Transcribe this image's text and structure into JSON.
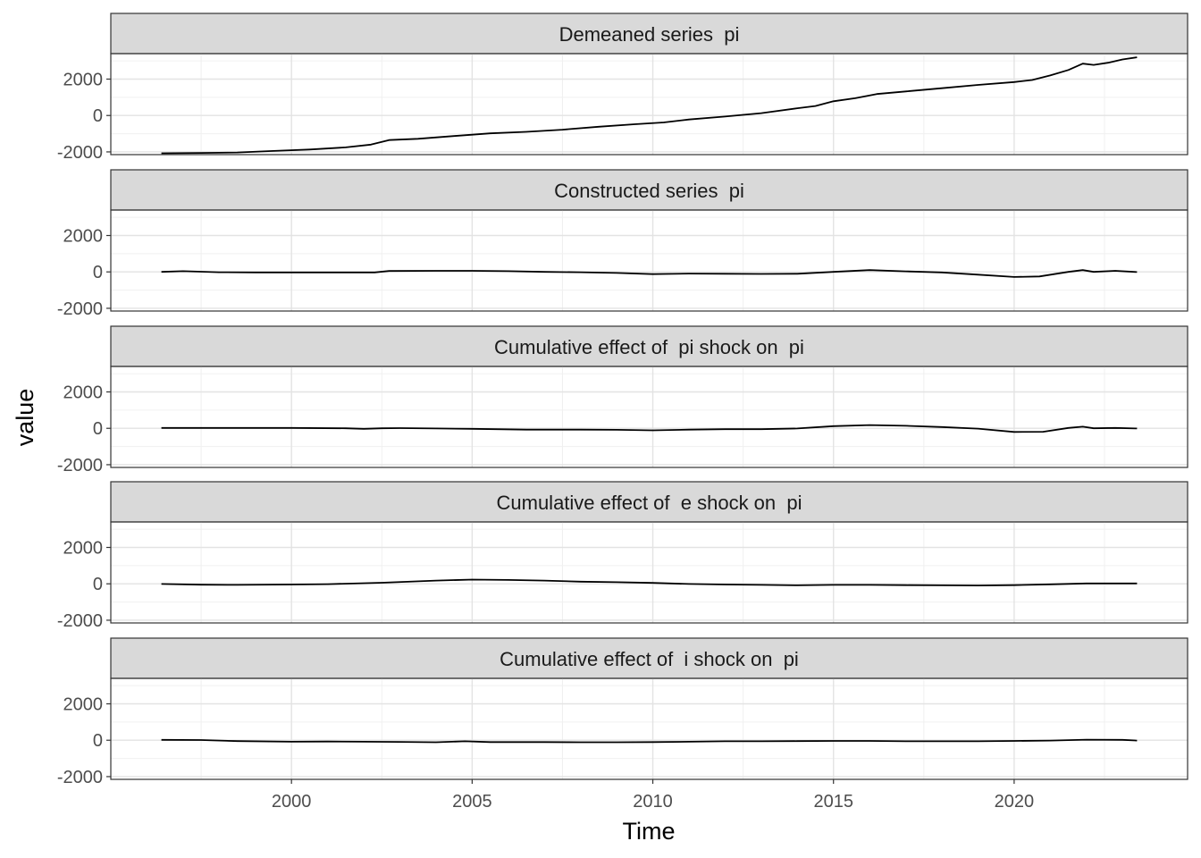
{
  "chart_data": {
    "type": "line",
    "layout": "faceted-vertical",
    "xlabel": "Time",
    "ylabel": "value",
    "xlim": [
      1995.0,
      2024.8
    ],
    "ylim": [
      -2150,
      3400
    ],
    "x_ticks": [
      2000,
      2005,
      2010,
      2015,
      2020
    ],
    "x_tick_labels": [
      "2000",
      "2005",
      "2010",
      "2015",
      "2020"
    ],
    "y_ticks": [
      -2000,
      0,
      2000
    ],
    "y_tick_labels": [
      "-2000",
      "0",
      "2000"
    ],
    "grid": true,
    "line_color": "#000000",
    "panels": [
      {
        "title": "Demeaned series  pi",
        "points": [
          [
            1996.4,
            -2075
          ],
          [
            1997.5,
            -2055
          ],
          [
            1998.5,
            -2030
          ],
          [
            1999.5,
            -1950
          ],
          [
            2000.5,
            -1870
          ],
          [
            2001.5,
            -1750
          ],
          [
            2002.2,
            -1600
          ],
          [
            2002.7,
            -1350
          ],
          [
            2003.5,
            -1280
          ],
          [
            2004.5,
            -1130
          ],
          [
            2005.5,
            -980
          ],
          [
            2006.5,
            -900
          ],
          [
            2007.5,
            -780
          ],
          [
            2008.5,
            -620
          ],
          [
            2009.5,
            -480
          ],
          [
            2010.3,
            -380
          ],
          [
            2011.0,
            -220
          ],
          [
            2012.0,
            -60
          ],
          [
            2013.0,
            130
          ],
          [
            2014.0,
            400
          ],
          [
            2014.5,
            520
          ],
          [
            2015.0,
            780
          ],
          [
            2015.6,
            950
          ],
          [
            2016.2,
            1180
          ],
          [
            2017.0,
            1320
          ],
          [
            2018.0,
            1500
          ],
          [
            2019.0,
            1680
          ],
          [
            2020.0,
            1840
          ],
          [
            2020.5,
            1950
          ],
          [
            2021.0,
            2200
          ],
          [
            2021.5,
            2500
          ],
          [
            2021.9,
            2850
          ],
          [
            2022.2,
            2780
          ],
          [
            2022.6,
            2900
          ],
          [
            2023.0,
            3080
          ],
          [
            2023.4,
            3200
          ]
        ]
      },
      {
        "title": "Constructed series  pi",
        "points": [
          [
            1996.4,
            0
          ],
          [
            1997.0,
            40
          ],
          [
            1998.0,
            -20
          ],
          [
            1999.0,
            -30
          ],
          [
            2000.0,
            -30
          ],
          [
            2001.0,
            -30
          ],
          [
            2002.3,
            -30
          ],
          [
            2002.7,
            50
          ],
          [
            2004.0,
            60
          ],
          [
            2005.0,
            60
          ],
          [
            2006.0,
            40
          ],
          [
            2007.0,
            0
          ],
          [
            2008.0,
            -20
          ],
          [
            2009.0,
            -60
          ],
          [
            2010.0,
            -120
          ],
          [
            2011.0,
            -90
          ],
          [
            2012.0,
            -100
          ],
          [
            2013.0,
            -110
          ],
          [
            2014.0,
            -100
          ],
          [
            2015.0,
            0
          ],
          [
            2016.0,
            100
          ],
          [
            2017.0,
            30
          ],
          [
            2018.0,
            -30
          ],
          [
            2019.0,
            -150
          ],
          [
            2020.0,
            -280
          ],
          [
            2020.7,
            -250
          ],
          [
            2021.5,
            0
          ],
          [
            2021.9,
            100
          ],
          [
            2022.2,
            0
          ],
          [
            2022.8,
            60
          ],
          [
            2023.4,
            -10
          ]
        ]
      },
      {
        "title": "Cumulative effect of  pi shock on  pi",
        "points": [
          [
            1996.4,
            20
          ],
          [
            1998.0,
            20
          ],
          [
            2000.0,
            20
          ],
          [
            2001.5,
            0
          ],
          [
            2002.0,
            -30
          ],
          [
            2002.5,
            0
          ],
          [
            2003.0,
            10
          ],
          [
            2004.0,
            -10
          ],
          [
            2005.0,
            -30
          ],
          [
            2006.5,
            -70
          ],
          [
            2008.0,
            -70
          ],
          [
            2009.0,
            -80
          ],
          [
            2010.0,
            -110
          ],
          [
            2011.0,
            -70
          ],
          [
            2012.0,
            -50
          ],
          [
            2013.0,
            -50
          ],
          [
            2014.0,
            -10
          ],
          [
            2015.0,
            120
          ],
          [
            2016.0,
            180
          ],
          [
            2017.0,
            140
          ],
          [
            2018.0,
            70
          ],
          [
            2019.0,
            -20
          ],
          [
            2020.0,
            -200
          ],
          [
            2020.8,
            -190
          ],
          [
            2021.5,
            20
          ],
          [
            2021.9,
            90
          ],
          [
            2022.2,
            0
          ],
          [
            2022.8,
            20
          ],
          [
            2023.4,
            -10
          ]
        ]
      },
      {
        "title": "Cumulative effect of  e shock on  pi",
        "points": [
          [
            1996.4,
            -10
          ],
          [
            1997.5,
            -50
          ],
          [
            1998.5,
            -60
          ],
          [
            2000.0,
            -40
          ],
          [
            2001.0,
            -20
          ],
          [
            2002.5,
            60
          ],
          [
            2004.0,
            180
          ],
          [
            2005.0,
            230
          ],
          [
            2006.0,
            210
          ],
          [
            2007.0,
            180
          ],
          [
            2008.0,
            120
          ],
          [
            2009.0,
            90
          ],
          [
            2010.0,
            50
          ],
          [
            2011.0,
            -10
          ],
          [
            2012.0,
            -40
          ],
          [
            2013.0,
            -60
          ],
          [
            2014.0,
            -80
          ],
          [
            2015.0,
            -60
          ],
          [
            2016.0,
            -60
          ],
          [
            2017.0,
            -70
          ],
          [
            2018.0,
            -80
          ],
          [
            2019.0,
            -90
          ],
          [
            2020.0,
            -70
          ],
          [
            2021.0,
            -30
          ],
          [
            2022.0,
            20
          ],
          [
            2023.4,
            20
          ]
        ]
      },
      {
        "title": "Cumulative effect of  i shock on  pi",
        "points": [
          [
            1996.4,
            20
          ],
          [
            1997.5,
            10
          ],
          [
            1998.5,
            -50
          ],
          [
            2000.0,
            -80
          ],
          [
            2001.0,
            -70
          ],
          [
            2002.0,
            -80
          ],
          [
            2003.0,
            -90
          ],
          [
            2004.0,
            -110
          ],
          [
            2004.8,
            -60
          ],
          [
            2005.5,
            -100
          ],
          [
            2007.0,
            -100
          ],
          [
            2008.0,
            -110
          ],
          [
            2009.0,
            -110
          ],
          [
            2010.0,
            -100
          ],
          [
            2011.0,
            -80
          ],
          [
            2012.0,
            -60
          ],
          [
            2013.0,
            -60
          ],
          [
            2014.0,
            -50
          ],
          [
            2015.0,
            -40
          ],
          [
            2016.0,
            -40
          ],
          [
            2017.0,
            -60
          ],
          [
            2018.0,
            -60
          ],
          [
            2019.0,
            -60
          ],
          [
            2020.0,
            -40
          ],
          [
            2021.0,
            -20
          ],
          [
            2022.0,
            30
          ],
          [
            2023.0,
            20
          ],
          [
            2023.4,
            -20
          ]
        ]
      }
    ]
  }
}
